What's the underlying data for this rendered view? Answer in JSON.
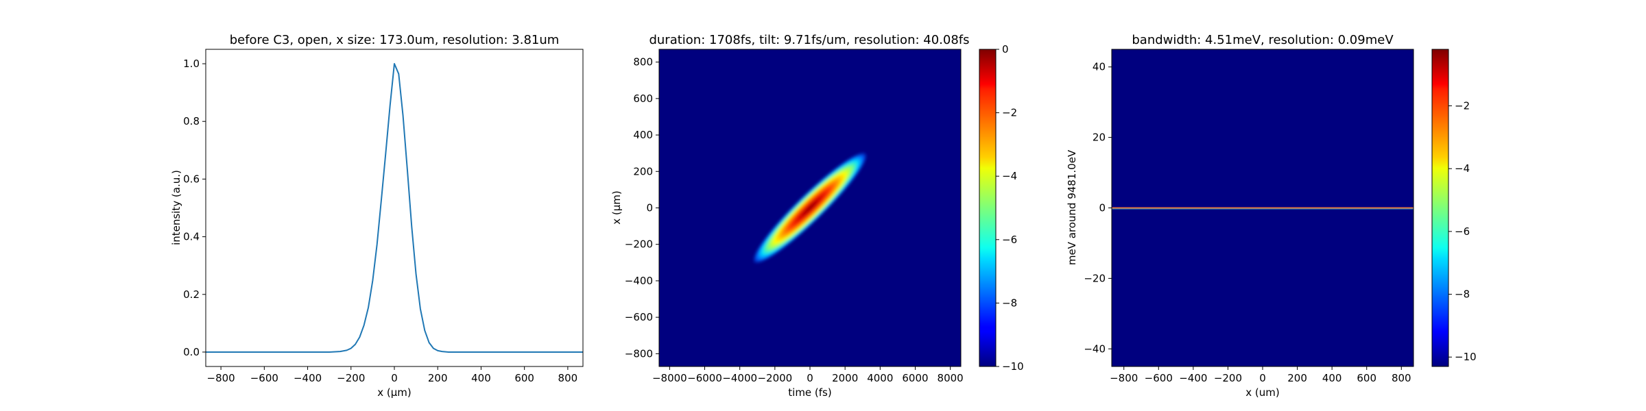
{
  "chart_data": [
    {
      "type": "line",
      "title": "before C3, open, x size: 173.0um, resolution: 3.81um",
      "xlabel": "x (μm)",
      "ylabel": "intensity (a.u.)",
      "xlim": [
        -870,
        870
      ],
      "ylim": [
        -0.05,
        1.05
      ],
      "xticks": [
        -800,
        -600,
        -400,
        -200,
        0,
        200,
        400,
        600,
        800
      ],
      "yticks": [
        0.0,
        0.2,
        0.4,
        0.6,
        0.8,
        1.0
      ],
      "xtick_labels": [
        "−800",
        "−600",
        "−400",
        "−200",
        "0",
        "200",
        "400",
        "600",
        "800"
      ],
      "ytick_labels": [
        "0.0",
        "0.2",
        "0.4",
        "0.6",
        "0.8",
        "1.0"
      ],
      "series": [
        {
          "color": "#1f77b4",
          "x": [
            -870,
            -400,
            -300,
            -250,
            -220,
            -200,
            -180,
            -160,
            -140,
            -120,
            -100,
            -80,
            -60,
            -40,
            -20,
            0,
            20,
            40,
            60,
            80,
            100,
            120,
            140,
            160,
            180,
            200,
            220,
            250,
            300,
            400,
            870
          ],
          "y": [
            0.0,
            0.0,
            0.0,
            0.002,
            0.006,
            0.013,
            0.027,
            0.052,
            0.093,
            0.155,
            0.248,
            0.373,
            0.528,
            0.69,
            0.855,
            1.0,
            0.965,
            0.82,
            0.63,
            0.435,
            0.27,
            0.15,
            0.075,
            0.033,
            0.013,
            0.005,
            0.002,
            0.0,
            0.0,
            0.0,
            0.0
          ]
        }
      ],
      "grid": false
    },
    {
      "type": "heatmap",
      "title": "duration: 1708fs, tilt: 9.71fs/um, resolution: 40.08fs",
      "xlabel": "time (fs)",
      "ylabel": "x (μm)",
      "xlim": [
        -8600,
        8600
      ],
      "ylim": [
        -870,
        870
      ],
      "xticks": [
        -8000,
        -6000,
        -4000,
        -2000,
        0,
        2000,
        4000,
        6000,
        8000
      ],
      "yticks": [
        -800,
        -600,
        -400,
        -200,
        0,
        200,
        400,
        600,
        800
      ],
      "xtick_labels": [
        "−8000",
        "−6000",
        "−4000",
        "−2000",
        "0",
        "2000",
        "4000",
        "6000",
        "8000"
      ],
      "ytick_labels": [
        "−800",
        "−600",
        "−400",
        "−200",
        "0",
        "200",
        "400",
        "600",
        "800"
      ],
      "colormap": "jet",
      "color_range": [
        -10,
        0
      ],
      "colorbar_ticks": [
        0,
        -2,
        -4,
        -6,
        -8,
        -10
      ],
      "colorbar_tick_labels": [
        "0",
        "−2",
        "−4",
        "−6",
        "−8",
        "−10"
      ],
      "feature": {
        "shape": "tilted ellipse",
        "center_time_fs": 0,
        "center_x_um": 0,
        "tilt_fs_per_um": 9.71,
        "time_extent_fs": [
          -3200,
          3200
        ],
        "x_extent_um": [
          -300,
          300
        ]
      },
      "background_value": -10
    },
    {
      "type": "heatmap",
      "title": "bandwidth: 4.51meV, resolution: 0.09meV",
      "xlabel": "x (um)",
      "ylabel": "meV around 9481.0eV",
      "xlim": [
        -870,
        870
      ],
      "ylim": [
        -45,
        45
      ],
      "xticks": [
        -800,
        -600,
        -400,
        -200,
        0,
        200,
        400,
        600,
        800
      ],
      "yticks": [
        -40,
        -20,
        0,
        20,
        40
      ],
      "xtick_labels": [
        "−800",
        "−600",
        "−400",
        "−200",
        "0",
        "200",
        "400",
        "600",
        "800"
      ],
      "ytick_labels": [
        "−40",
        "−20",
        "0",
        "20",
        "40"
      ],
      "colormap": "jet",
      "color_range": [
        -10.3,
        -0.2
      ],
      "colorbar_ticks": [
        -2,
        -4,
        -6,
        -8,
        -10
      ],
      "colorbar_tick_labels": [
        "−2",
        "−4",
        "−6",
        "−8",
        "−10"
      ],
      "feature": {
        "shape": "horizontal line",
        "y_meV": 0
      },
      "background_value": -10
    }
  ]
}
